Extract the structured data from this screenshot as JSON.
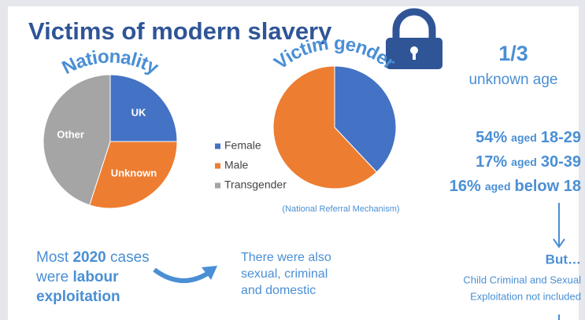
{
  "title": "Victims of modern slavery",
  "chart_data": [
    {
      "type": "pie",
      "title": "Nationality",
      "categories": [
        "UK",
        "Unknown",
        "Other"
      ],
      "values": [
        25,
        30,
        45
      ],
      "colors": [
        "#4472c4",
        "#ed7d31",
        "#a5a5a5"
      ]
    },
    {
      "type": "pie",
      "title": "Victim gender",
      "categories": [
        "Female",
        "Male",
        "Transgender"
      ],
      "values": [
        38,
        62,
        0
      ],
      "colors": [
        "#4472c4",
        "#ed7d31",
        "#a5a5a5"
      ],
      "legend": "left",
      "source": "(National Referral Mechanism)"
    }
  ],
  "unknown_age": {
    "fraction": "1/3",
    "label": "unknown age"
  },
  "age_stats": [
    {
      "pct": "54%",
      "word": "aged",
      "range": "18-29"
    },
    {
      "pct": "17%",
      "word": "aged",
      "range": "30-39"
    },
    {
      "pct": "16%",
      "word": "aged",
      "range": "below 18"
    }
  ],
  "left_note": {
    "a": "Most",
    "b": "2020",
    "c": "cases",
    "d": "were",
    "e": "labour",
    "f": "exploitation"
  },
  "middle_note": [
    "There were also",
    "sexual, criminal",
    "and domestic"
  ],
  "right_note": {
    "heading": "But…",
    "lines": [
      "Child Criminal and Sexual",
      "Exploitation not included"
    ]
  }
}
